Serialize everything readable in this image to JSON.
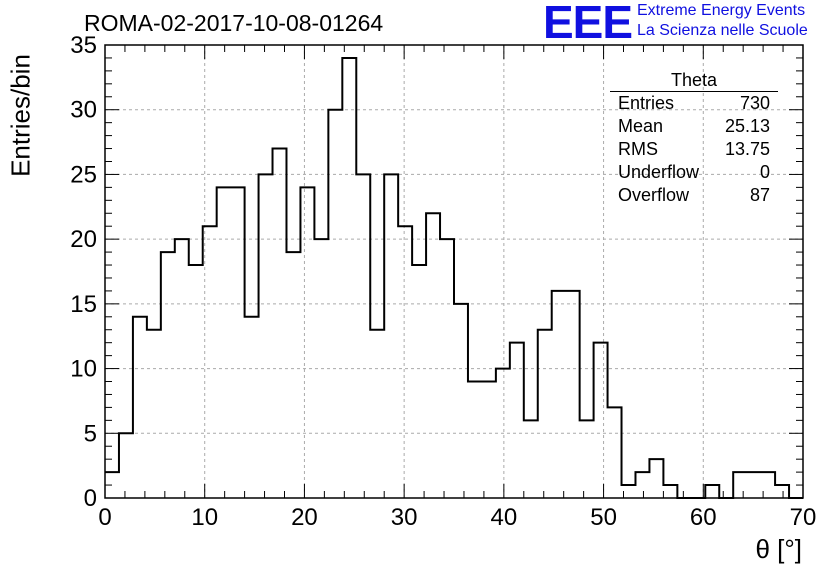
{
  "title": "ROMA-02-2017-10-08-01264",
  "logo": {
    "letters": "EEE",
    "line1": "Extreme Energy Events",
    "line2": "La Scienza nelle Scuole",
    "color": "#1010e0"
  },
  "stats": {
    "name": "Theta",
    "rows": [
      {
        "label": "Entries",
        "value": "730"
      },
      {
        "label": "Mean",
        "value": "25.13"
      },
      {
        "label": "RMS",
        "value": "13.75"
      },
      {
        "label": "Underflow",
        "value": "0"
      },
      {
        "label": "Overflow",
        "value": "87"
      }
    ]
  },
  "chart_data": {
    "type": "bar",
    "histogram": true,
    "title": "ROMA-02-2017-10-08-01264",
    "xlabel": "θ [°]",
    "ylabel": "Entries/bin",
    "xlim": [
      0,
      70
    ],
    "ylim": [
      0,
      35
    ],
    "xticks": [
      0,
      10,
      20,
      30,
      40,
      50,
      60,
      70
    ],
    "yticks": [
      0,
      5,
      10,
      15,
      20,
      25,
      30,
      35
    ],
    "grid": true,
    "bin_width": 1.4,
    "values": [
      2,
      5,
      14,
      13,
      19,
      20,
      18,
      21,
      24,
      24,
      14,
      25,
      27,
      19,
      24,
      20,
      30,
      34,
      25,
      13,
      25,
      21,
      18,
      22,
      20,
      15,
      9,
      9,
      10,
      12,
      6,
      13,
      16,
      16,
      6,
      12,
      7,
      1,
      2,
      3,
      1,
      0,
      0,
      1,
      0,
      2,
      2,
      2,
      1,
      0
    ],
    "line_color": "#000000",
    "grid_color": "#aaaaaa"
  }
}
